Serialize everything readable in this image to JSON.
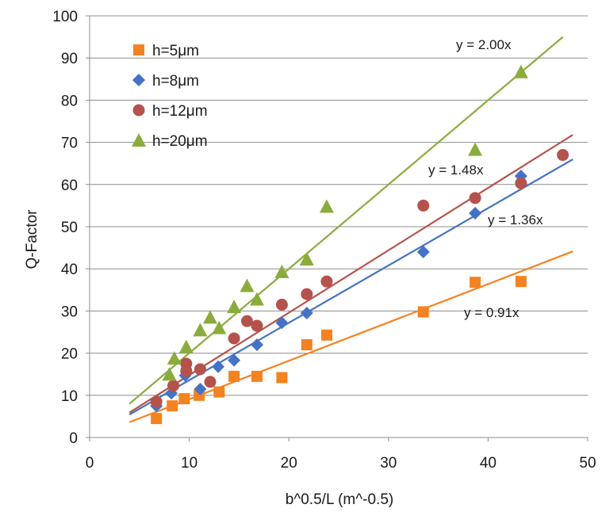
{
  "chart_data": {
    "type": "scatter",
    "xlabel": "b^0.5/L (m^-0.5)",
    "ylabel": "Q-Factor",
    "xlim": [
      0,
      50
    ],
    "ylim": [
      0,
      100
    ],
    "xticks": [
      0,
      10,
      20,
      30,
      40,
      50
    ],
    "yticks": [
      0,
      10,
      20,
      30,
      40,
      50,
      60,
      70,
      80,
      90,
      100
    ],
    "grid": "horizontal",
    "legend": "top-left",
    "series": [
      {
        "name": "h=5μm",
        "marker": "square",
        "color": "#f58220",
        "points": [
          [
            6.7,
            4.5
          ],
          [
            8.3,
            7.5
          ],
          [
            9.5,
            9.2
          ],
          [
            11.0,
            10.0
          ],
          [
            13.0,
            10.8
          ],
          [
            14.5,
            14.5
          ],
          [
            16.8,
            14.5
          ],
          [
            19.3,
            14.2
          ],
          [
            21.8,
            22.0
          ],
          [
            23.8,
            24.3
          ],
          [
            33.5,
            29.8
          ],
          [
            38.7,
            36.8
          ],
          [
            43.3,
            37.0
          ]
        ],
        "fit_slope": 0.91,
        "fit_x": [
          4,
          48.5
        ],
        "fit_label": "y = 0.91x"
      },
      {
        "name": "h=8μm",
        "marker": "diamond",
        "color": "#4472c4",
        "points": [
          [
            6.7,
            7.5
          ],
          [
            8.2,
            10.5
          ],
          [
            9.6,
            14.7
          ],
          [
            11.1,
            11.5
          ],
          [
            12.9,
            16.8
          ],
          [
            14.5,
            18.3
          ],
          [
            16.8,
            22.0
          ],
          [
            19.3,
            27.2
          ],
          [
            21.8,
            29.5
          ],
          [
            33.5,
            44.0
          ],
          [
            38.7,
            53.2
          ],
          [
            43.3,
            62.0
          ]
        ],
        "fit_slope": 1.36,
        "fit_x": [
          4,
          48.5
        ],
        "fit_label": "y = 1.36x"
      },
      {
        "name": "h=12μm",
        "marker": "circle",
        "color": "#b5524c",
        "points": [
          [
            6.7,
            8.5
          ],
          [
            8.4,
            12.3
          ],
          [
            9.7,
            15.8
          ],
          [
            9.7,
            17.5
          ],
          [
            11.1,
            16.2
          ],
          [
            12.1,
            13.2
          ],
          [
            14.5,
            23.5
          ],
          [
            15.8,
            27.6
          ],
          [
            16.8,
            26.5
          ],
          [
            19.3,
            31.5
          ],
          [
            21.8,
            34.0
          ],
          [
            23.8,
            37.0
          ],
          [
            33.5,
            55.0
          ],
          [
            38.7,
            56.8
          ],
          [
            43.3,
            60.3
          ],
          [
            47.5,
            67.0
          ]
        ],
        "fit_slope": 1.48,
        "fit_x": [
          4,
          48.5
        ],
        "fit_label": "y = 1.48x"
      },
      {
        "name": "h=20μm",
        "marker": "triangle",
        "color": "#8aac3c",
        "points": [
          [
            8.0,
            15.0
          ],
          [
            8.5,
            18.8
          ],
          [
            9.7,
            21.5
          ],
          [
            11.1,
            25.5
          ],
          [
            12.1,
            28.5
          ],
          [
            13.0,
            26.0
          ],
          [
            14.5,
            31.0
          ],
          [
            15.8,
            36.0
          ],
          [
            16.8,
            32.8
          ],
          [
            19.3,
            39.3
          ],
          [
            21.8,
            42.3
          ],
          [
            23.8,
            54.8
          ],
          [
            38.7,
            68.3
          ],
          [
            43.3,
            86.7
          ]
        ],
        "fit_slope": 2.0,
        "fit_x": [
          4,
          47.5
        ],
        "fit_label": "y = 2.00x"
      }
    ]
  }
}
